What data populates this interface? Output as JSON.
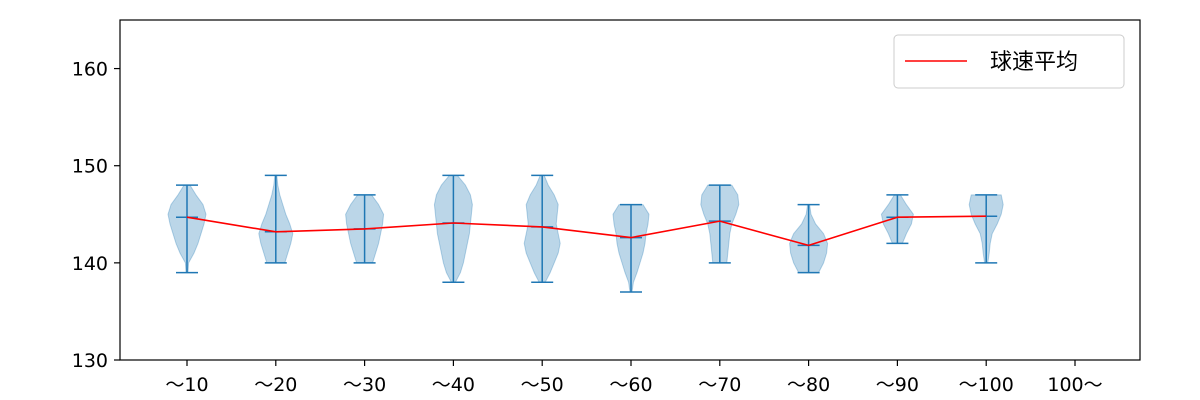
{
  "chart_data": {
    "type": "violin",
    "categories": [
      "～10",
      "～20",
      "～30",
      "～40",
      "～50",
      "～60",
      "～70",
      "～80",
      "～90",
      "～100",
      "100～"
    ],
    "ylim": [
      130,
      165
    ],
    "yticks": [
      130,
      140,
      150,
      160
    ],
    "grid": false,
    "legend": {
      "position": "top-right",
      "label": "球速平均"
    },
    "series": [
      {
        "name": "球速平均",
        "type": "line",
        "color": "#ff0000",
        "values": [
          144.7,
          143.2,
          143.5,
          144.1,
          143.7,
          142.6,
          144.3,
          141.8,
          144.7,
          144.8,
          null
        ]
      }
    ],
    "violins": [
      {
        "category": "～10",
        "min": 139,
        "max": 148,
        "mean": 144.7,
        "profile": [
          [
            139,
            0.05
          ],
          [
            140,
            0.08
          ],
          [
            141,
            0.35
          ],
          [
            142,
            0.55
          ],
          [
            143,
            0.7
          ],
          [
            144,
            0.85
          ],
          [
            145,
            0.95
          ],
          [
            146,
            0.8
          ],
          [
            147,
            0.45
          ],
          [
            148,
            0.15
          ]
        ]
      },
      {
        "category": "～20",
        "min": 140,
        "max": 149,
        "mean": 143.2,
        "profile": [
          [
            140,
            0.45
          ],
          [
            141,
            0.6
          ],
          [
            142,
            0.75
          ],
          [
            143,
            0.85
          ],
          [
            144,
            0.7
          ],
          [
            145,
            0.5
          ],
          [
            146,
            0.35
          ],
          [
            147,
            0.2
          ],
          [
            148,
            0.1
          ],
          [
            149,
            0.05
          ]
        ]
      },
      {
        "category": "～30",
        "min": 140,
        "max": 147,
        "mean": 143.5,
        "profile": [
          [
            140,
            0.4
          ],
          [
            141,
            0.55
          ],
          [
            142,
            0.7
          ],
          [
            143,
            0.8
          ],
          [
            144,
            0.9
          ],
          [
            145,
            0.95
          ],
          [
            146,
            0.7
          ],
          [
            147,
            0.35
          ]
        ]
      },
      {
        "category": "～40",
        "min": 138,
        "max": 149,
        "mean": 144.1,
        "profile": [
          [
            138,
            0.1
          ],
          [
            139,
            0.35
          ],
          [
            140,
            0.5
          ],
          [
            141,
            0.6
          ],
          [
            142,
            0.7
          ],
          [
            143,
            0.8
          ],
          [
            144,
            0.85
          ],
          [
            145,
            0.9
          ],
          [
            146,
            0.95
          ],
          [
            147,
            0.85
          ],
          [
            148,
            0.6
          ],
          [
            149,
            0.2
          ]
        ]
      },
      {
        "category": "～50",
        "min": 138,
        "max": 149,
        "mean": 143.7,
        "profile": [
          [
            138,
            0.15
          ],
          [
            139,
            0.4
          ],
          [
            140,
            0.6
          ],
          [
            141,
            0.8
          ],
          [
            142,
            0.9
          ],
          [
            143,
            0.8
          ],
          [
            144,
            0.7
          ],
          [
            145,
            0.75
          ],
          [
            146,
            0.8
          ],
          [
            147,
            0.6
          ],
          [
            148,
            0.3
          ],
          [
            149,
            0.1
          ]
        ]
      },
      {
        "category": "～60",
        "min": 137,
        "max": 146,
        "mean": 142.6,
        "profile": [
          [
            137,
            0.05
          ],
          [
            138,
            0.12
          ],
          [
            139,
            0.3
          ],
          [
            140,
            0.45
          ],
          [
            141,
            0.6
          ],
          [
            142,
            0.7
          ],
          [
            143,
            0.75
          ],
          [
            144,
            0.85
          ],
          [
            145,
            0.9
          ],
          [
            146,
            0.6
          ]
        ]
      },
      {
        "category": "～70",
        "min": 140,
        "max": 148,
        "mean": 144.3,
        "profile": [
          [
            140,
            0.35
          ],
          [
            141,
            0.4
          ],
          [
            142,
            0.45
          ],
          [
            143,
            0.5
          ],
          [
            144,
            0.6
          ],
          [
            145,
            0.8
          ],
          [
            146,
            0.95
          ],
          [
            147,
            0.9
          ],
          [
            148,
            0.6
          ]
        ]
      },
      {
        "category": "～80",
        "min": 139,
        "max": 146,
        "mean": 141.8,
        "profile": [
          [
            139,
            0.5
          ],
          [
            140,
            0.75
          ],
          [
            141,
            0.9
          ],
          [
            142,
            0.95
          ],
          [
            143,
            0.75
          ],
          [
            144,
            0.35
          ],
          [
            145,
            0.12
          ],
          [
            146,
            0.05
          ]
        ]
      },
      {
        "category": "～90",
        "min": 142,
        "max": 147,
        "mean": 144.7,
        "profile": [
          [
            142,
            0.25
          ],
          [
            143,
            0.45
          ],
          [
            144,
            0.7
          ],
          [
            145,
            0.8
          ],
          [
            146,
            0.45
          ],
          [
            147,
            0.15
          ]
        ]
      },
      {
        "category": "～100",
        "min": 140,
        "max": 147,
        "mean": 144.8,
        "profile": [
          [
            140,
            0.08
          ],
          [
            141,
            0.15
          ],
          [
            142,
            0.2
          ],
          [
            143,
            0.3
          ],
          [
            144,
            0.55
          ],
          [
            145,
            0.75
          ],
          [
            146,
            0.85
          ],
          [
            147,
            0.75
          ]
        ]
      }
    ],
    "colors": {
      "violin_fill": "#1f77b4",
      "violin_stroke": "#1f77b4",
      "mean_line": "#ff0000",
      "axes": "#000000",
      "legend_border": "#cccccc"
    }
  }
}
